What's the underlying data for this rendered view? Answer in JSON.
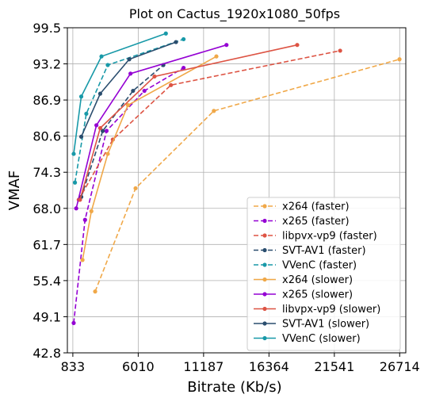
{
  "chart_data": {
    "type": "line",
    "title": "Plot on Cactus_1920x1080_50fps",
    "xlabel": "Bitrate (Kb/s)",
    "ylabel": "VMAF",
    "xlim": [
      400,
      27200
    ],
    "ylim": [
      42.8,
      99.5
    ],
    "xticks": [
      833,
      6010,
      11187,
      16364,
      21541,
      26714
    ],
    "xtick_labels": [
      "833",
      "6010",
      "11187",
      "16364",
      "21541",
      "26714"
    ],
    "yticks": [
      42.8,
      49.1,
      55.4,
      61.7,
      68.0,
      74.3,
      80.6,
      86.9,
      93.2,
      99.5
    ],
    "ytick_labels": [
      "42.8",
      "49.1",
      "55.4",
      "61.7",
      "68.0",
      "74.3",
      "80.6",
      "86.9",
      "93.2",
      "99.5"
    ],
    "grid": true,
    "legend_position": "lower-right",
    "series": [
      {
        "name": "x264 (faster)",
        "color": "#f0a848",
        "style": "dashed",
        "x": [
          2600,
          5800,
          12000,
          26700
        ],
        "y": [
          53.5,
          71.5,
          85.0,
          94.0
        ]
      },
      {
        "name": "x265 (faster)",
        "color": "#9400d3",
        "style": "dashed",
        "x": [
          900,
          1800,
          3500,
          6500,
          9600
        ],
        "y": [
          48.0,
          66.0,
          81.5,
          88.5,
          92.5
        ]
      },
      {
        "name": "libpvx-vp9 (faster)",
        "color": "#dd5444",
        "style": "dashed",
        "x": [
          1300,
          4000,
          8600,
          22000
        ],
        "y": [
          69.5,
          80.0,
          89.5,
          95.5
        ]
      },
      {
        "name": "SVT-AV1 (faster)",
        "color": "#2a4d6e",
        "style": "dashed",
        "x": [
          1500,
          3200,
          5600,
          8000
        ],
        "y": [
          70.0,
          81.5,
          88.5,
          93.0
        ]
      },
      {
        "name": "VVenC (faster)",
        "color": "#1899a8",
        "style": "dashed",
        "x": [
          1000,
          1900,
          3600,
          9600
        ],
        "y": [
          72.5,
          84.5,
          93.0,
          97.5
        ]
      },
      {
        "name": "x264 (slower)",
        "color": "#f0a848",
        "style": "solid",
        "x": [
          1600,
          2300,
          3600,
          5200,
          12200
        ],
        "y": [
          59.0,
          67.5,
          77.5,
          86.0,
          94.5
        ]
      },
      {
        "name": "x265 (slower)",
        "color": "#9400d3",
        "style": "solid",
        "x": [
          1100,
          2700,
          5400,
          13000
        ],
        "y": [
          68.0,
          82.5,
          91.5,
          96.5
        ]
      },
      {
        "name": "libvpx-vp9 (slower)",
        "color": "#dd5444",
        "style": "solid",
        "x": [
          1400,
          3000,
          7300,
          18600
        ],
        "y": [
          69.5,
          82.0,
          91.0,
          96.5
        ]
      },
      {
        "name": "SVT-AV1 (slower)",
        "color": "#2a4d6e",
        "style": "solid",
        "x": [
          1500,
          3000,
          5300,
          9000
        ],
        "y": [
          80.5,
          88.0,
          94.0,
          97.0
        ]
      },
      {
        "name": "VVenC (slower)",
        "color": "#1899a8",
        "style": "solid",
        "x": [
          900,
          1500,
          3100,
          8200
        ],
        "y": [
          77.5,
          87.5,
          94.5,
          98.5
        ]
      }
    ]
  }
}
